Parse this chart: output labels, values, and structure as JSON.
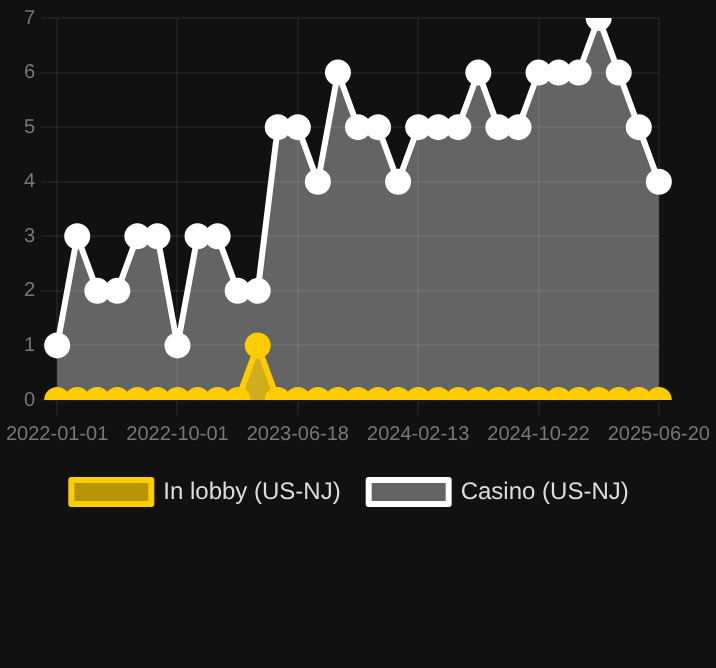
{
  "chart_data": {
    "type": "area",
    "categories": [
      "2022-01-01",
      null,
      null,
      null,
      null,
      null,
      "2022-10-01",
      null,
      null,
      null,
      null,
      null,
      "2023-06-18",
      null,
      null,
      null,
      null,
      null,
      "2024-02-13",
      null,
      null,
      null,
      null,
      null,
      "2024-10-22",
      null,
      null,
      null,
      null,
      null,
      "2025-06-20"
    ],
    "series": [
      {
        "name": "In lobby (US-NJ)",
        "color": "#ffcc00",
        "values": [
          0,
          0,
          0,
          0,
          0,
          0,
          0,
          0,
          0,
          0,
          1,
          0,
          0,
          0,
          0,
          0,
          0,
          0,
          0,
          0,
          0,
          0,
          0,
          0,
          0,
          0,
          0,
          0,
          0,
          0,
          0
        ]
      },
      {
        "name": "Casino (US-NJ)",
        "color": "#ffffff",
        "values": [
          1,
          3,
          2,
          2,
          3,
          3,
          1,
          3,
          3,
          2,
          2,
          5,
          5,
          4,
          6,
          5,
          5,
          4,
          5,
          5,
          5,
          6,
          5,
          5,
          6,
          6,
          6,
          7,
          6,
          5,
          4
        ]
      }
    ],
    "ylim": [
      0,
      7
    ],
    "yticks": [
      0,
      1,
      2,
      3,
      4,
      5,
      6,
      7
    ],
    "grid": true,
    "legend": "bottom",
    "marker": "circle"
  }
}
